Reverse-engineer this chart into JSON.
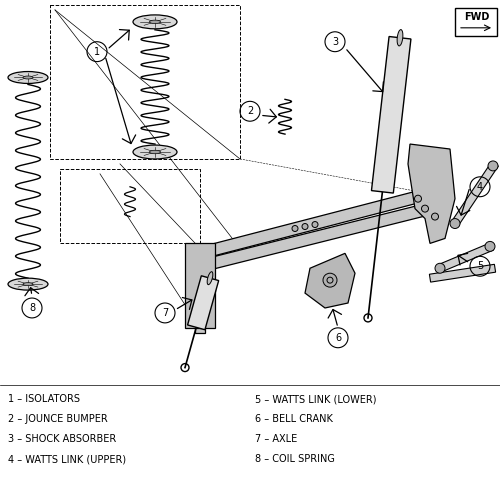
{
  "background_color": "#ffffff",
  "legend_items_left": [
    "1 – ISOLATORS",
    "2 – JOUNCE BUMPER",
    "3 – SHOCK ABSORBER",
    "4 – WATTS LINK (UPPER)"
  ],
  "legend_items_right": [
    "5 – WATTS LINK (LOWER)",
    "6 – BELL CRANK",
    "7 – AXLE",
    "8 – COIL SPRING"
  ],
  "figsize": [
    5.0,
    4.84
  ],
  "dpi": 100
}
